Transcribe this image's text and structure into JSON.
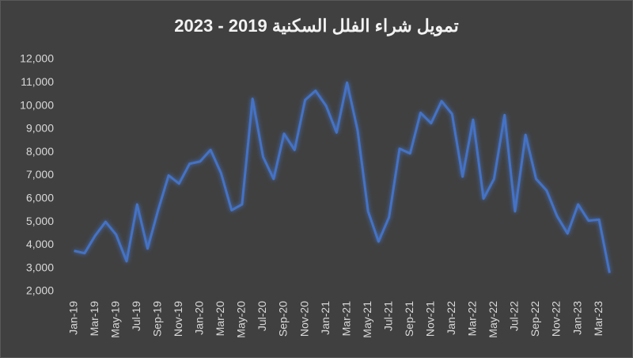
{
  "chart_data": {
    "type": "line",
    "title": "تمويل شراء الفلل السكنية 2019 - 2023",
    "categories": [
      "Jan-19",
      null,
      "Mar-19",
      null,
      "May-19",
      null,
      "Jul-19",
      null,
      "Sep-19",
      null,
      "Nov-19",
      null,
      "Jan-20",
      null,
      "Mar-20",
      null,
      "May-20",
      null,
      "Jul-20",
      null,
      "Sep-20",
      null,
      "Nov-20",
      null,
      "Jan-21",
      null,
      "Mar-21",
      null,
      "May-21",
      null,
      "Jul-21",
      null,
      "Sep-21",
      null,
      "Nov-21",
      null,
      "Jan-22",
      null,
      "Mar-22",
      null,
      "May-22",
      null,
      "Jul-22",
      null,
      "Sep-22",
      null,
      "Nov-22",
      null,
      "Jan-23",
      null,
      "Mar-23",
      null
    ],
    "values": [
      3750,
      3650,
      4400,
      5000,
      4450,
      3300,
      5750,
      3850,
      5500,
      7000,
      6650,
      7500,
      7600,
      8100,
      7100,
      5500,
      5750,
      10300,
      7800,
      6850,
      8800,
      8100,
      10250,
      10650,
      10000,
      8850,
      11000,
      8950,
      5450,
      4150,
      5200,
      8150,
      7950,
      9700,
      9250,
      10200,
      9650,
      6950,
      9400,
      6000,
      6850,
      9600,
      5450,
      8750,
      6850,
      6350,
      5250,
      4500,
      5750,
      5050,
      5100,
      2800
    ],
    "color": "#4472c4",
    "ylim": [
      2000,
      12000
    ],
    "yticks": [
      {
        "value": 2000,
        "label": "2,000"
      },
      {
        "value": 3000,
        "label": "3,000"
      },
      {
        "value": 4000,
        "label": "4,000"
      },
      {
        "value": 5000,
        "label": "5,000"
      },
      {
        "value": 6000,
        "label": "6,000"
      },
      {
        "value": 7000,
        "label": "7,000"
      },
      {
        "value": 8000,
        "label": "8,000"
      },
      {
        "value": 9000,
        "label": "9,000"
      },
      {
        "value": 10000,
        "label": "10,000"
      },
      {
        "value": 11000,
        "label": "11,000"
      },
      {
        "value": 12000,
        "label": "12,000"
      }
    ],
    "grid": false
  }
}
